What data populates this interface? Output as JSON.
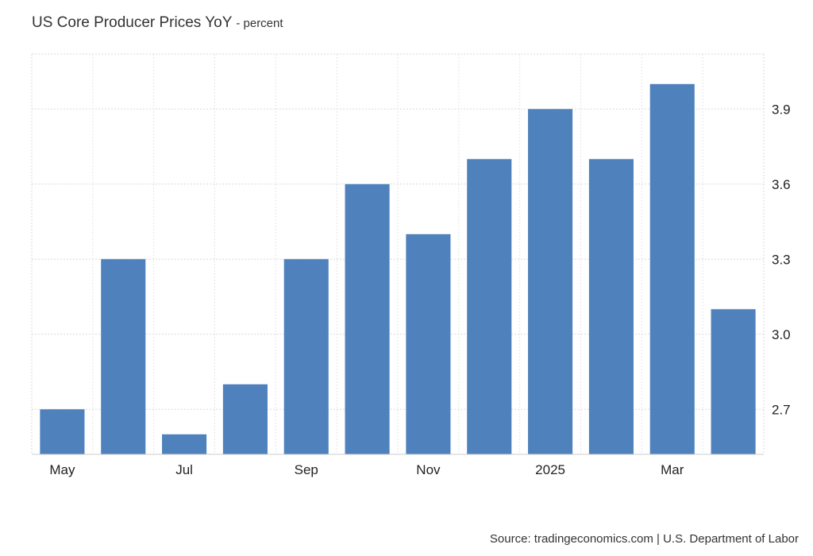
{
  "title": "US Core Producer Prices YoY",
  "subtitle": "- percent",
  "source": "Source: tradingeconomics.com | U.S. Department of Labor",
  "chart_data": {
    "type": "bar",
    "categories": [
      "2024-05",
      "2024-06",
      "2024-07",
      "2024-08",
      "2024-09",
      "2024-10",
      "2024-11",
      "2024-12",
      "2025-01",
      "2025-02",
      "2025-03",
      "2025-04"
    ],
    "values": [
      2.7,
      3.3,
      2.6,
      2.8,
      3.3,
      3.6,
      3.4,
      3.7,
      3.9,
      3.7,
      4.0,
      3.1
    ],
    "x_tick_labels": [
      {
        "index": 0,
        "label": "May"
      },
      {
        "index": 2,
        "label": "Jul"
      },
      {
        "index": 4,
        "label": "Sep"
      },
      {
        "index": 6,
        "label": "Nov"
      },
      {
        "index": 8,
        "label": "2025"
      },
      {
        "index": 10,
        "label": "Mar"
      }
    ],
    "y_ticks": [
      "2.7",
      "3.0",
      "3.3",
      "3.6",
      "3.9"
    ],
    "ylim": [
      2.52,
      4.12
    ],
    "xlabel": "",
    "ylabel": "",
    "grid": true,
    "bar_color": "#4f81bd"
  }
}
